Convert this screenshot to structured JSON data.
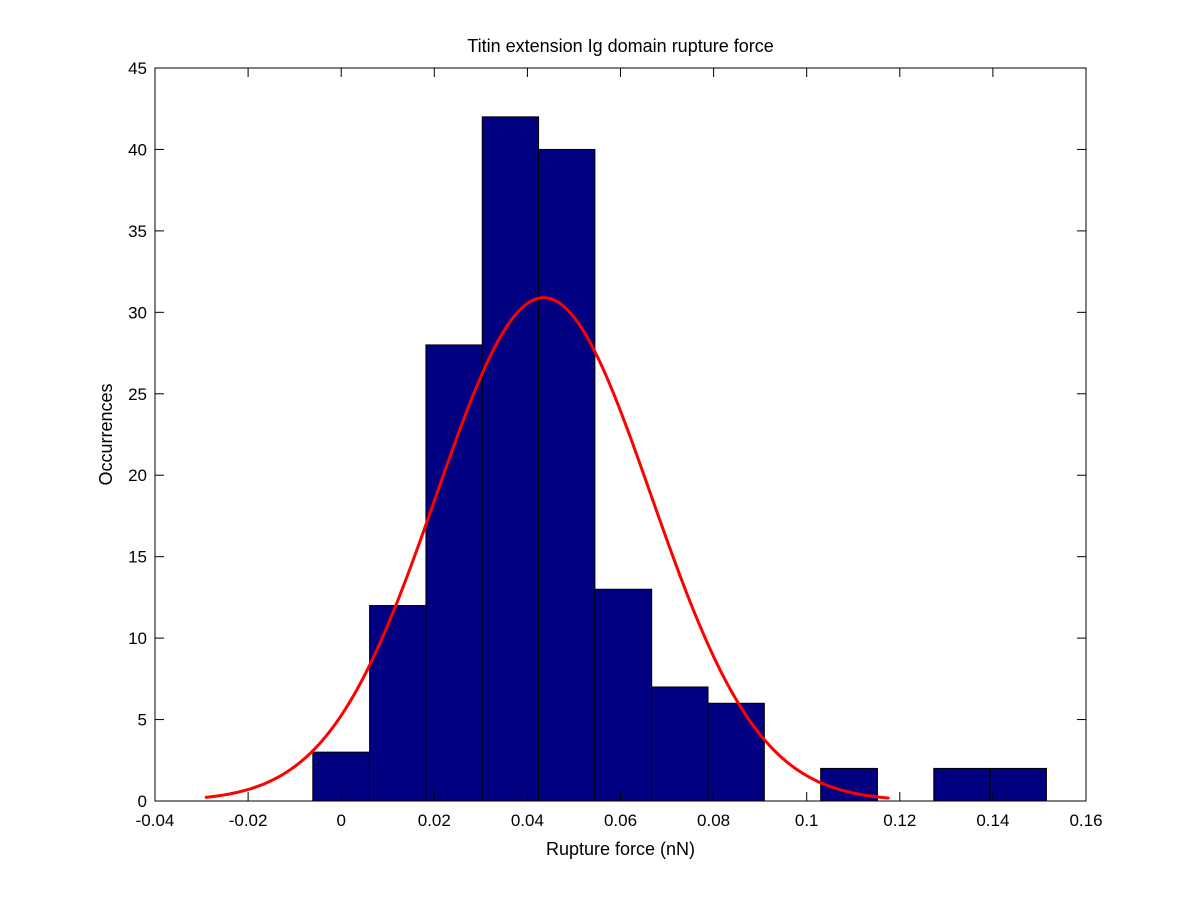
{
  "chart_data": {
    "type": "bar",
    "subtype": "histogram-with-fit",
    "title": "Titin extension Ig domain rupture force",
    "xlabel": "Rupture force (nN)",
    "ylabel": "Occurrences",
    "xlim": [
      -0.04,
      0.16
    ],
    "ylim": [
      0,
      45
    ],
    "xticks": [
      -0.04,
      -0.02,
      0,
      0.02,
      0.04,
      0.06,
      0.08,
      0.1,
      0.12,
      0.14,
      0.16
    ],
    "xtick_labels": [
      "-0.04",
      "-0.02",
      "0",
      "0.02",
      "0.04",
      "0.06",
      "0.08",
      "0.1",
      "0.12",
      "0.14",
      "0.16"
    ],
    "yticks": [
      0,
      5,
      10,
      15,
      20,
      25,
      30,
      35,
      40,
      45
    ],
    "ytick_labels": [
      "0",
      "5",
      "10",
      "15",
      "20",
      "25",
      "30",
      "35",
      "40",
      "45"
    ],
    "bins": [
      {
        "start": -0.0061,
        "end": 0.0061,
        "count": 3
      },
      {
        "start": 0.0061,
        "end": 0.0182,
        "count": 12
      },
      {
        "start": 0.0182,
        "end": 0.0303,
        "count": 28
      },
      {
        "start": 0.0303,
        "end": 0.0424,
        "count": 42
      },
      {
        "start": 0.0424,
        "end": 0.0545,
        "count": 40
      },
      {
        "start": 0.0545,
        "end": 0.0667,
        "count": 13
      },
      {
        "start": 0.0667,
        "end": 0.0788,
        "count": 7
      },
      {
        "start": 0.0788,
        "end": 0.0909,
        "count": 6
      },
      {
        "start": 0.0909,
        "end": 0.103,
        "count": 0
      },
      {
        "start": 0.103,
        "end": 0.1152,
        "count": 2
      },
      {
        "start": 0.1152,
        "end": 0.1273,
        "count": 0
      },
      {
        "start": 0.1273,
        "end": 0.1394,
        "count": 2
      },
      {
        "start": 0.1394,
        "end": 0.1515,
        "count": 2
      }
    ],
    "fit": {
      "type": "gaussian",
      "amplitude": 30.9,
      "mean": 0.0435,
      "sigma": 0.0231,
      "x_range": [
        -0.029,
        0.1175
      ]
    },
    "grid": false,
    "legend": "none",
    "colors": {
      "bar_fill": "#000080",
      "bar_edge": "#000000",
      "fit_line": "#ff0000",
      "axes": "#000000",
      "background": "#ffffff"
    }
  }
}
